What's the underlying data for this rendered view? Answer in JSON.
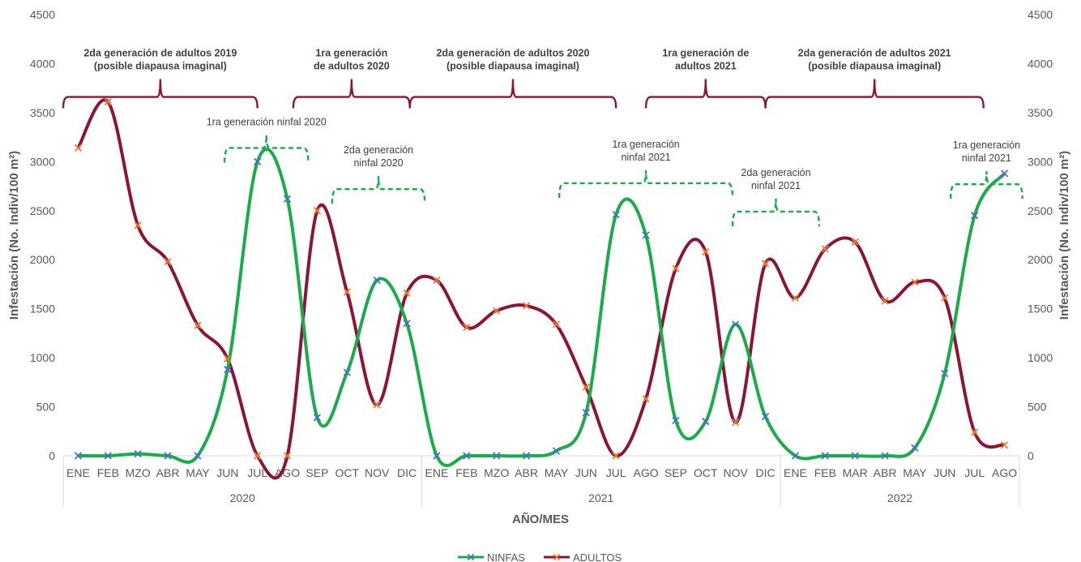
{
  "chart_data": {
    "type": "line",
    "xlabel": "AÑO/MES",
    "ylabel_left": "Infestación (No. Indiv/100 m²)",
    "ylabel_right": "Infestación (No. Indiv/100 m²)",
    "ylim": [
      0,
      4500
    ],
    "y_ticks": [
      0,
      500,
      1000,
      1500,
      2000,
      2500,
      3000,
      3500,
      4000,
      4500
    ],
    "months": [
      "ENE",
      "FEB",
      "MZO",
      "ABR",
      "MAY",
      "JUN",
      "JUL",
      "AGO",
      "SEP",
      "OCT",
      "NOV",
      "DIC",
      "ENE",
      "FEB",
      "MZO",
      "ABR",
      "MAY",
      "JUN",
      "JUL",
      "AGO",
      "SEP",
      "OCT",
      "NOV",
      "DIC",
      "ENE",
      "FEB",
      "MAR",
      "ABR",
      "MAY",
      "JUN",
      "JUL",
      "AGO"
    ],
    "years": [
      {
        "label": "2020",
        "start": 0,
        "end": 11
      },
      {
        "label": "2021",
        "start": 12,
        "end": 23
      },
      {
        "label": "2022",
        "start": 24,
        "end": 31
      }
    ],
    "series": [
      {
        "name": "NINFAS",
        "color": "#1aab4a",
        "marker_color": "#4472c4",
        "values": [
          0,
          0,
          20,
          0,
          0,
          880,
          3000,
          2620,
          390,
          850,
          1790,
          1350,
          0,
          0,
          0,
          0,
          50,
          440,
          2460,
          2250,
          360,
          350,
          1340,
          400,
          0,
          0,
          0,
          0,
          80,
          840,
          2450,
          2880
        ]
      },
      {
        "name": "ADULTOS",
        "color": "#8b1538",
        "marker_color": "#ed7d31",
        "values": [
          3140,
          3610,
          2350,
          1980,
          1330,
          990,
          0,
          0,
          2500,
          1670,
          520,
          1660,
          1790,
          1310,
          1480,
          1530,
          1340,
          700,
          0,
          580,
          1910,
          2080,
          340,
          1960,
          1610,
          2110,
          2180,
          1580,
          1770,
          1610,
          240,
          110
        ]
      }
    ],
    "annotations": [
      {
        "lines": [
          "2da generación de adultos 2019",
          "(posible diapausa imaginal)"
        ],
        "style": "adult",
        "from": 0,
        "to": 6.5,
        "y": 3660
      },
      {
        "lines": [
          "1ra generación",
          "de adultos 2020"
        ],
        "style": "adult",
        "from": 7.7,
        "to": 11.6,
        "y": 3660
      },
      {
        "lines": [
          "2da generación de adultos 2020",
          "(posible diapausa imaginal)"
        ],
        "style": "adult",
        "from": 11.6,
        "to": 18.5,
        "y": 3660
      },
      {
        "lines": [
          "1ra generación de",
          "adultos 2021"
        ],
        "style": "adult",
        "from": 19.5,
        "to": 23.5,
        "y": 3660
      },
      {
        "lines": [
          "2da generación de adultos 2021",
          "(posible diapausa imaginal)"
        ],
        "style": "adult",
        "from": 23.5,
        "to": 30.8,
        "y": 3660
      },
      {
        "lines": [
          "1ra generación ninfal 2020"
        ],
        "style": "nymph",
        "from": 5.4,
        "to": 8.2,
        "y": 3140
      },
      {
        "lines": [
          "2da generación",
          "ninfal 2020"
        ],
        "style": "nymph",
        "from": 9.0,
        "to": 12.1,
        "y": 2720
      },
      {
        "lines": [
          "1ra generación",
          "ninfal 2021"
        ],
        "style": "nymph",
        "from": 16.6,
        "to": 22.4,
        "y": 2780
      },
      {
        "lines": [
          "2da generación",
          "ninfal 2021"
        ],
        "style": "nymph",
        "from": 22.4,
        "to": 25.3,
        "y": 2490
      },
      {
        "lines": [
          "1ra generación",
          "ninfal 2021"
        ],
        "style": "nymph",
        "from": 29.7,
        "to": 32.1,
        "y": 2770
      }
    ]
  }
}
